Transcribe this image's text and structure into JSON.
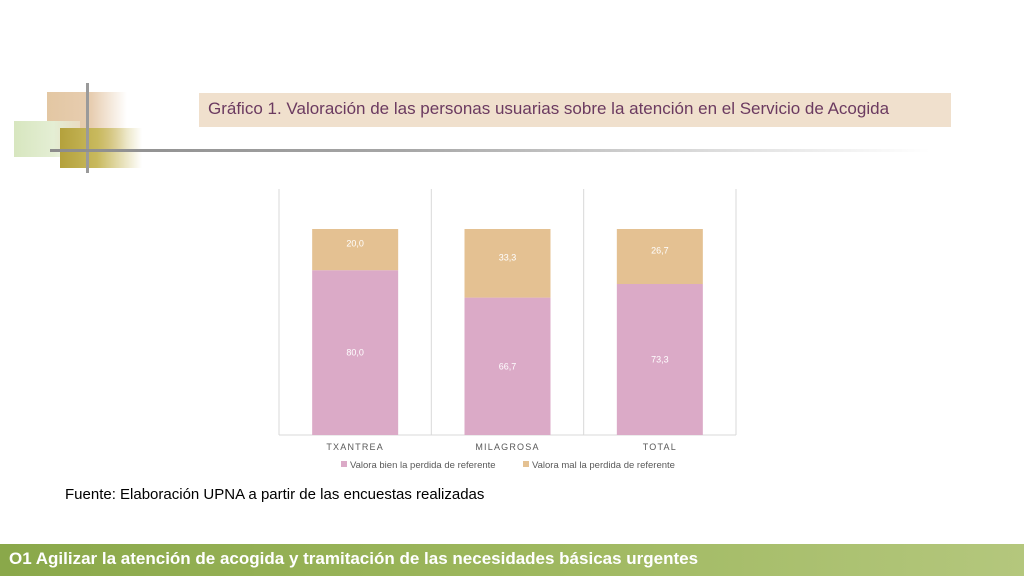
{
  "slide": {
    "title": "Gráfico 1. Valoración de las personas usuarias sobre la atención en el Servicio de Acogida",
    "source": "Fuente: Elaboración UPNA a partir de las encuestas realizadas",
    "footer": "O1 Agilizar la atención de acogida y tramitación de las necesidades básicas urgentes"
  },
  "chart_data": {
    "type": "bar",
    "stacked": true,
    "categories": [
      "TXANTREA",
      "MILAGROSA",
      "TOTAL"
    ],
    "series": [
      {
        "name": "Valora bien la perdida de referente",
        "values": [
          80.0,
          66.7,
          73.3
        ],
        "labels": [
          "80,0",
          "66,7",
          "73,3"
        ],
        "color": "#dbaac7"
      },
      {
        "name": "Valora mal la perdida de referente",
        "values": [
          20.0,
          33.3,
          26.7
        ],
        "labels": [
          "20,0",
          "33,3",
          "26,7"
        ],
        "color": "#e4c192"
      }
    ],
    "ylim": [
      0,
      100
    ],
    "legend": "bottom",
    "grid": "vertical-separators"
  }
}
